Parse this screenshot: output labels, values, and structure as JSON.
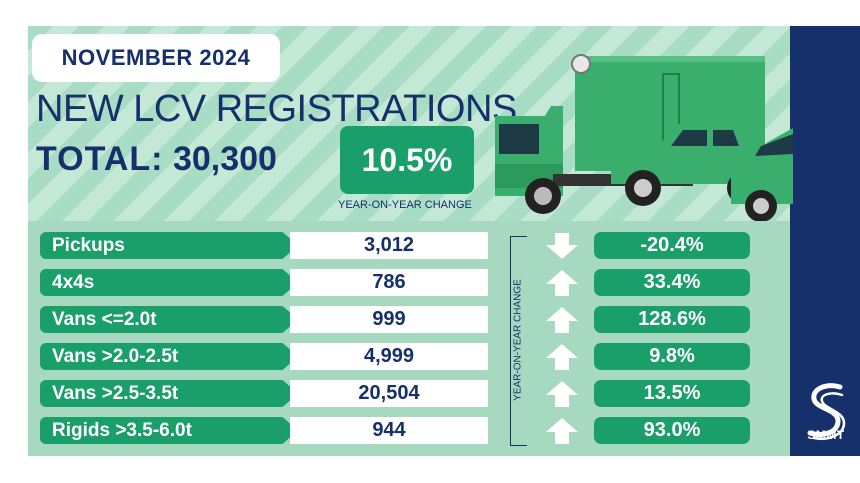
{
  "header": {
    "month": "NOVEMBER 2024",
    "title": "NEW LCV REGISTRATIONS",
    "total_label": "TOTAL:",
    "total_value": "30,300",
    "headline_change": "10.5%",
    "headline_caption": "YEAR-ON-YEAR CHANGE"
  },
  "table": {
    "side_caption": "YEAR-ON-YEAR CHANGE",
    "rows": [
      {
        "label": "Pickups",
        "value": "3,012",
        "change": "-20.4%",
        "direction": "down"
      },
      {
        "label": "4x4s",
        "value": "786",
        "change": "33.4%",
        "direction": "up"
      },
      {
        "label": "Vans <=2.0t",
        "value": "999",
        "change": "128.6%",
        "direction": "up"
      },
      {
        "label": "Vans >2.0-2.5t",
        "value": "4,999",
        "change": "9.8%",
        "direction": "up"
      },
      {
        "label": "Vans >2.5-3.5t",
        "value": "20,504",
        "change": "13.5%",
        "direction": "up"
      },
      {
        "label": "Rigids >3.5-6.0t",
        "value": "944",
        "change": "93.0%",
        "direction": "up"
      }
    ]
  },
  "brand": {
    "name": "SMMT"
  },
  "colors": {
    "navy": "#15306a",
    "green": "#1a9e6a",
    "mint": "#8fd3b4"
  }
}
